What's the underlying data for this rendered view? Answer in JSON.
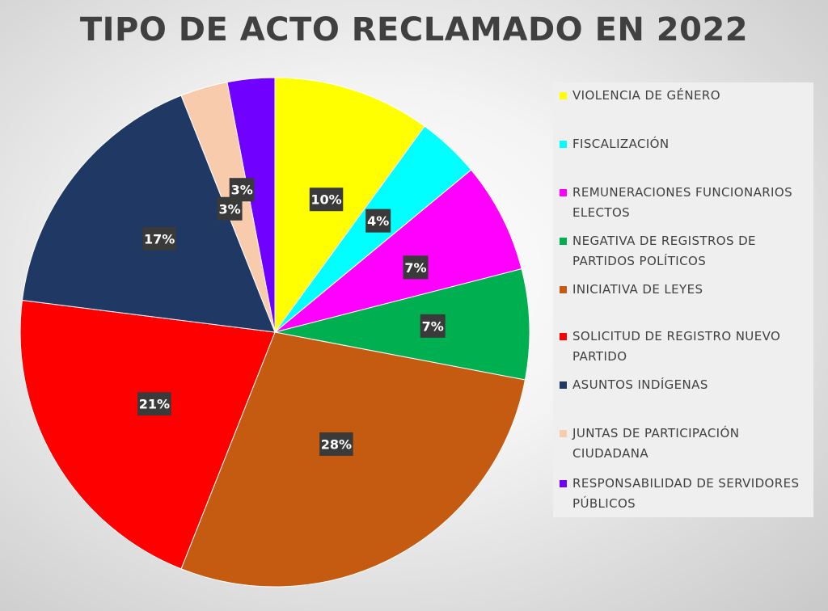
{
  "chart_data": {
    "type": "pie",
    "title": "TIPO DE ACTO RECLAMADO EN 2022",
    "legend_position": "right",
    "slices": [
      {
        "name": "VIOLENCIA DE GÉNERO",
        "value": 10,
        "label": "10%",
        "color": "#ffff00"
      },
      {
        "name": "FISCALIZACIÓN",
        "value": 4,
        "label": "4%",
        "color": "#00ffff"
      },
      {
        "name": "REMUNERACIONES FUNCIONARIOS ELECTOS",
        "value": 7,
        "label": "7%",
        "color": "#ff00ff"
      },
      {
        "name": "NEGATIVA DE REGISTROS DE PARTIDOS POLÍTICOS",
        "value": 7,
        "label": "7%",
        "color": "#00b050"
      },
      {
        "name": "INICIATIVA DE LEYES",
        "value": 28,
        "label": "28%",
        "color": "#c55a11"
      },
      {
        "name": "SOLICITUD DE REGISTRO NUEVO PARTIDO",
        "value": 21,
        "label": "21%",
        "color": "#ff0000"
      },
      {
        "name": "ASUNTOS INDÍGENAS",
        "value": 17,
        "label": "17%",
        "color": "#203864"
      },
      {
        "name": "JUNTAS DE PARTICIPACIÓN CIUDADANA",
        "value": 3,
        "label": "3%",
        "color": "#f8cbad"
      },
      {
        "name": "RESPONSABILIDAD DE SERVIDORES PÚBLICOS",
        "value": 3,
        "label": "3%",
        "color": "#7000ff"
      }
    ]
  }
}
